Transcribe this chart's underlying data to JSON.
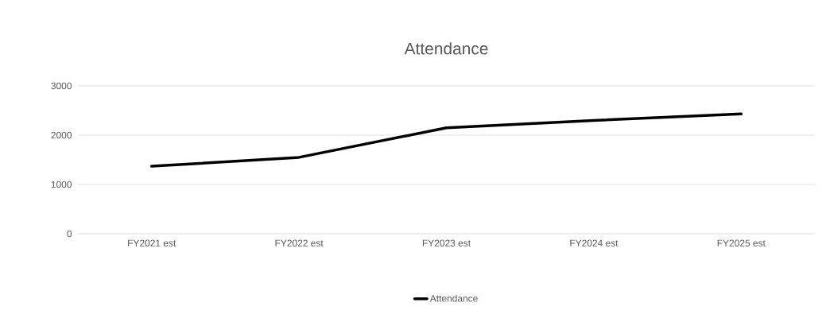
{
  "chart_data": {
    "type": "line",
    "title": "Attendance",
    "categories": [
      "FY2021 est",
      "FY2022 est",
      "FY2023 est",
      "FY2024 est",
      "FY2025 est"
    ],
    "series": [
      {
        "name": "Attendance",
        "color": "#000000",
        "values": [
          1370,
          1550,
          2150,
          2300,
          2430
        ]
      }
    ],
    "ylim": [
      0,
      3000
    ],
    "yticks": [
      0,
      1000,
      2000,
      3000
    ],
    "grid": "y",
    "legend": "bottom",
    "marker": "none",
    "line_style": "solid"
  }
}
